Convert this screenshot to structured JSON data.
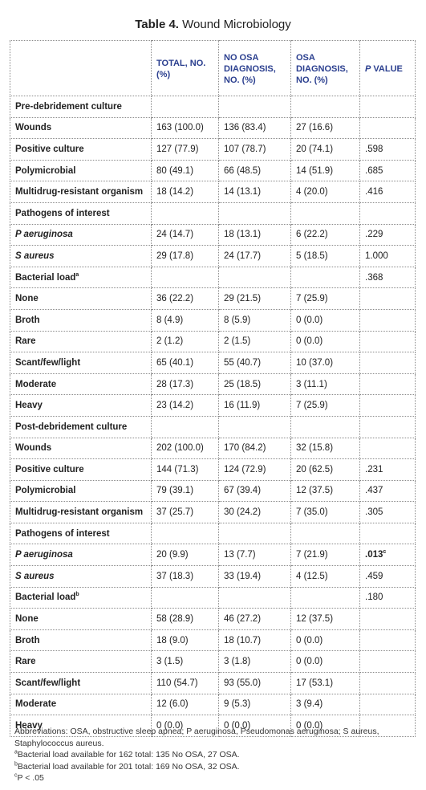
{
  "title": {
    "label": "Table 4.",
    "text": "Wound Microbiology"
  },
  "headers": [
    "",
    "TOTAL, NO. (%)",
    "NO OSA DIAGNOSIS, NO. (%)",
    "OSA DIAGNOSIS, NO. (%)",
    "P VALUE"
  ],
  "rows": [
    {
      "kind": "section",
      "label": "Pre-debridement culture"
    },
    {
      "kind": "row",
      "label": "Wounds",
      "v": [
        "163 (100.0)",
        "136 (83.4)",
        "27 (16.6)",
        ""
      ]
    },
    {
      "kind": "row",
      "label": "Positive culture",
      "v": [
        "127 (77.9)",
        "107 (78.7)",
        "20 (74.1)",
        ".598"
      ]
    },
    {
      "kind": "row",
      "label": "Polymicrobial",
      "v": [
        "80 (49.1)",
        "66 (48.5)",
        "14 (51.9)",
        ".685"
      ]
    },
    {
      "kind": "row",
      "label": "Multidrug-resistant organism",
      "v": [
        "18 (14.2)",
        "14 (13.1)",
        "4 (20.0)",
        ".416"
      ]
    },
    {
      "kind": "section",
      "label": "Pathogens of interest"
    },
    {
      "kind": "row",
      "italic": true,
      "label": "P aeruginosa",
      "v": [
        "24 (14.7)",
        "18 (13.1)",
        "6 (22.2)",
        ".229"
      ]
    },
    {
      "kind": "row",
      "italic": true,
      "label": "S aureus",
      "v": [
        "29 (17.8)",
        "24 (17.7)",
        "5 (18.5)",
        "1.000"
      ]
    },
    {
      "kind": "section",
      "label": "Bacterial load",
      "sup": "a",
      "v": [
        "",
        "",
        "",
        ".368"
      ]
    },
    {
      "kind": "row",
      "label": "None",
      "v": [
        "36 (22.2)",
        "29 (21.5)",
        "7 (25.9)",
        ""
      ]
    },
    {
      "kind": "row",
      "label": "Broth",
      "v": [
        "8 (4.9)",
        "8 (5.9)",
        "0 (0.0)",
        ""
      ]
    },
    {
      "kind": "row",
      "label": "Rare",
      "v": [
        "2 (1.2)",
        "2 (1.5)",
        "0 (0.0)",
        ""
      ]
    },
    {
      "kind": "row",
      "label": "Scant/few/light",
      "v": [
        "65 (40.1)",
        "55 (40.7)",
        "10 (37.0)",
        ""
      ]
    },
    {
      "kind": "row",
      "label": "Moderate",
      "v": [
        "28 (17.3)",
        "25 (18.5)",
        "3 (11.1)",
        ""
      ]
    },
    {
      "kind": "row",
      "label": "Heavy",
      "v": [
        "23 (14.2)",
        "16 (11.9)",
        "7 (25.9)",
        ""
      ]
    },
    {
      "kind": "section",
      "label": "Post-debridement culture"
    },
    {
      "kind": "row",
      "label": "Wounds",
      "v": [
        "202 (100.0)",
        "170 (84.2)",
        "32 (15.8)",
        ""
      ]
    },
    {
      "kind": "row",
      "label": "Positive culture",
      "v": [
        "144 (71.3)",
        "124 (72.9)",
        "20 (62.5)",
        ".231"
      ]
    },
    {
      "kind": "row",
      "label": "Polymicrobial",
      "v": [
        "79 (39.1)",
        "67 (39.4)",
        "12 (37.5)",
        ".437"
      ]
    },
    {
      "kind": "row",
      "label": "Multidrug-resistant organism",
      "v": [
        "37 (25.7)",
        "30 (24.2)",
        "7 (35.0)",
        ".305"
      ]
    },
    {
      "kind": "section",
      "label": "Pathogens of interest"
    },
    {
      "kind": "row",
      "italic": true,
      "label": "P aeruginosa",
      "v": [
        "20 (9.9)",
        "13 (7.7)",
        "7 (21.9)",
        ".013"
      ],
      "pbold": true,
      "psup": "c"
    },
    {
      "kind": "row",
      "italic": true,
      "label": "S aureus",
      "v": [
        "37 (18.3)",
        "33 (19.4)",
        "4 (12.5)",
        ".459"
      ]
    },
    {
      "kind": "section",
      "label": "Bacterial load",
      "sup": "b",
      "v": [
        "",
        "",
        "",
        ".180"
      ]
    },
    {
      "kind": "row",
      "label": "None",
      "v": [
        "58 (28.9)",
        "46 (27.2)",
        "12 (37.5)",
        ""
      ]
    },
    {
      "kind": "row",
      "label": "Broth",
      "v": [
        "18 (9.0)",
        "18 (10.7)",
        "0 (0.0)",
        ""
      ]
    },
    {
      "kind": "row",
      "label": "Rare",
      "v": [
        "3 (1.5)",
        "3 (1.8)",
        "0 (0.0)",
        ""
      ]
    },
    {
      "kind": "row",
      "label": "Scant/few/light",
      "v": [
        "110 (54.7)",
        "93 (55.0)",
        "17 (53.1)",
        ""
      ]
    },
    {
      "kind": "row",
      "label": "Moderate",
      "v": [
        "12 (6.0)",
        "9 (5.3)",
        "3 (9.4)",
        ""
      ]
    },
    {
      "kind": "row",
      "label": "Heavy",
      "v": [
        "0 (0.0)",
        "0 (0.0)",
        "0 (0.0)",
        ""
      ]
    }
  ],
  "footnotes": {
    "abbreviations": "Abbreviations: OSA, obstructive sleep apnea; P aeruginosa, Pseudomonas aeruginosa; S aureus, Staphylococcus aureus.",
    "a": {
      "mark": "a",
      "text": "Bacterial load available for 162 total: 135 No OSA, 27 OSA."
    },
    "b": {
      "mark": "b",
      "text": "Bacterial load available for 201 total: 169 No OSA, 32 OSA."
    },
    "c": {
      "mark": "c",
      "text": "P < .05"
    }
  }
}
